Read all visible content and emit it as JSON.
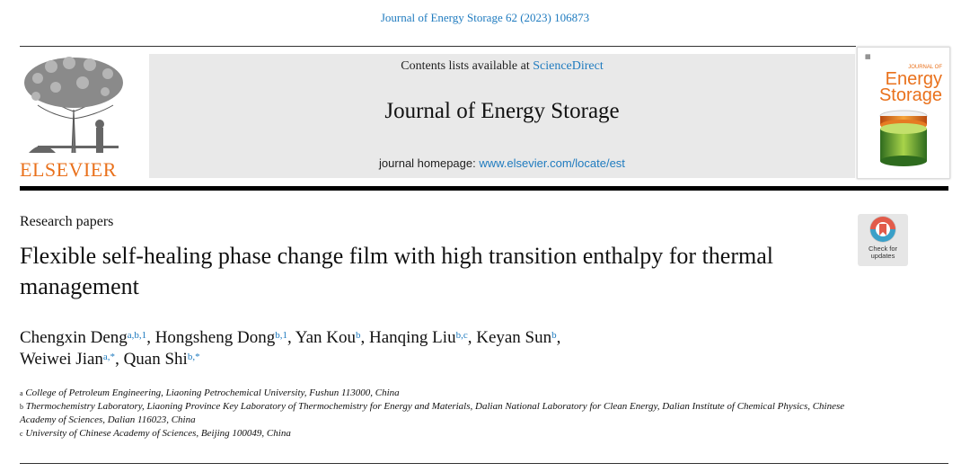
{
  "journal_ref": "Journal of Energy Storage 62 (2023) 106873",
  "publisher": {
    "wordmark": "ELSEVIER",
    "logo": "elsevier-tree-logo"
  },
  "header": {
    "contents_prefix": "Contents lists available at ",
    "contents_link": "ScienceDirect",
    "journal_title": "Journal of Energy Storage",
    "homepage_prefix": "journal homepage: ",
    "homepage_link": "www.elsevier.com/locate/est"
  },
  "cover": {
    "small_label": "JOURNAL OF",
    "title_line1": "Energy",
    "title_line2": "Storage",
    "accent_color": "#e9711c"
  },
  "article": {
    "section": "Research papers",
    "title": "Flexible self-healing phase change film with high transition enthalpy for thermal management",
    "crossmark_label_1": "Check for",
    "crossmark_label_2": "updates"
  },
  "authors": [
    {
      "name": "Chengxin Deng",
      "sup": "a,b,1",
      "sep": ", "
    },
    {
      "name": "Hongsheng Dong",
      "sup": "b,1",
      "sep": ", "
    },
    {
      "name": "Yan Kou",
      "sup": "b",
      "sep": ", "
    },
    {
      "name": "Hanqing Liu",
      "sup": "b,c",
      "sep": ", "
    },
    {
      "name": "Keyan Sun",
      "sup": "b",
      "sep": ","
    },
    {
      "name": "Weiwei Jian",
      "sup": "a,*",
      "sep": ", "
    },
    {
      "name": "Quan Shi",
      "sup": "b,*",
      "sep": ""
    }
  ],
  "affiliations": [
    {
      "key": "a",
      "text": "College of Petroleum Engineering, Liaoning Petrochemical University, Fushun 113000, China"
    },
    {
      "key": "b",
      "text": "Thermochemistry Laboratory, Liaoning Province Key Laboratory of Thermochemistry for Energy and Materials, Dalian National Laboratory for Clean Energy, Dalian Institute of Chemical Physics, Chinese Academy of Sciences, Dalian 116023, China"
    },
    {
      "key": "c",
      "text": "University of Chinese Academy of Sciences, Beijing 100049, China"
    }
  ]
}
